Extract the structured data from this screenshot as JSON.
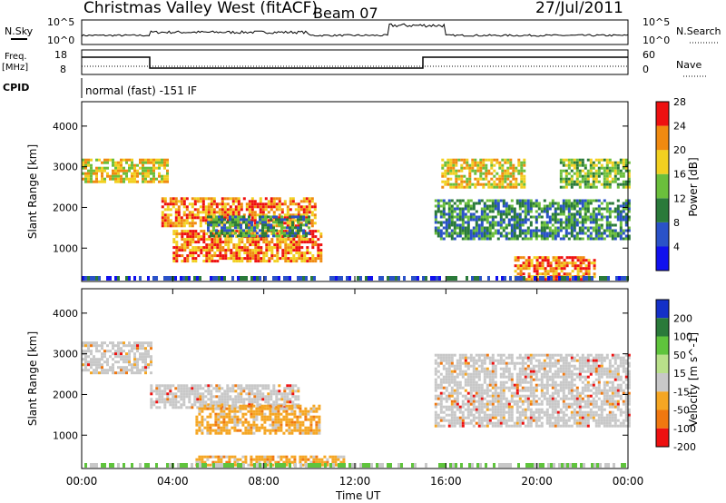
{
  "header": {
    "station": "Christmas Valley West (fitACF)",
    "beam": "Beam 07",
    "date": "27/Jul/2011"
  },
  "strip_nsky": {
    "left_label": "N.Sky",
    "right_label": "N.Search",
    "tick_top": "10^5",
    "tick_bottom": "10^0"
  },
  "strip_freq": {
    "left_label_1": "Freq.",
    "left_label_2": "[MHz]",
    "right_label": "Nave",
    "left_ticks": [
      "18",
      "8"
    ],
    "right_ticks": [
      "60",
      "0"
    ]
  },
  "strip_cpid": {
    "label": "CPID",
    "text": "normal (fast) -151 IF"
  },
  "chart_data": [
    {
      "type": "heatmap",
      "title": "",
      "ylabel": "Slant Range [km]",
      "xlabel": "",
      "yticks": [
        "1000",
        "2000",
        "3000",
        "4000"
      ],
      "ylim": [
        180,
        4600
      ],
      "xlim_hours": [
        0,
        24
      ],
      "colorbar": {
        "label": "Power [dB]",
        "ticks": [
          "4",
          "8",
          "12",
          "16",
          "20",
          "24",
          "28"
        ],
        "colors": [
          "#1010ee",
          "#2a52c8",
          "#2a7a3a",
          "#6bbf3c",
          "#f2d020",
          "#f08a10",
          "#ee1010"
        ]
      },
      "regions": [
        {
          "t0": 0.0,
          "t1": 3.8,
          "r0": 2600,
          "r1": 3200,
          "level": 5
        },
        {
          "t0": 3.5,
          "t1": 10.2,
          "r0": 1550,
          "r1": 2250,
          "level": 6
        },
        {
          "t0": 4.0,
          "t1": 10.5,
          "r0": 650,
          "r1": 1450,
          "level": 6
        },
        {
          "t0": 5.5,
          "t1": 10.0,
          "r0": 1300,
          "r1": 1800,
          "level": 3
        },
        {
          "t0": 15.5,
          "t1": 24.0,
          "r0": 1200,
          "r1": 2200,
          "level": 3
        },
        {
          "t0": 15.8,
          "t1": 19.5,
          "r0": 2500,
          "r1": 3200,
          "level": 5
        },
        {
          "t0": 21.0,
          "t1": 24.0,
          "r0": 2500,
          "r1": 3200,
          "level": 4
        },
        {
          "t0": 19.0,
          "t1": 22.5,
          "r0": 200,
          "r1": 800,
          "level": 6
        }
      ]
    },
    {
      "type": "heatmap",
      "title": "",
      "ylabel": "Slant Range [km]",
      "xlabel": "Time UT",
      "xticks": [
        "00:00",
        "04:00",
        "08:00",
        "12:00",
        "16:00",
        "20:00",
        "00:00"
      ],
      "yticks": [
        "1000",
        "2000",
        "3000",
        "4000"
      ],
      "ylim": [
        180,
        4600
      ],
      "xlim_hours": [
        0,
        24
      ],
      "colorbar": {
        "label": "Velocity [m s^-1]",
        "ticks": [
          "200",
          "100",
          "50",
          "15",
          "-15",
          "-50",
          "-100",
          "-200"
        ],
        "colors": [
          "#1430c8",
          "#2a7a3a",
          "#5fc43c",
          "#b9e08a",
          "#c8c8c8",
          "#f5a623",
          "#f07810",
          "#ee1010"
        ]
      },
      "regions": [
        {
          "t0": 0.0,
          "t1": 3.0,
          "r0": 2500,
          "r1": 3300,
          "vel": "ground"
        },
        {
          "t0": 3.0,
          "t1": 9.5,
          "r0": 1650,
          "r1": 2250,
          "vel": "ground"
        },
        {
          "t0": 5.0,
          "t1": 10.5,
          "r0": 1050,
          "r1": 1750,
          "vel": "-50"
        },
        {
          "t0": 5.0,
          "t1": 11.5,
          "r0": 250,
          "r1": 500,
          "vel": "-50"
        },
        {
          "t0": 15.5,
          "t1": 24.0,
          "r0": 1200,
          "r1": 3000,
          "vel": "ground"
        }
      ]
    }
  ]
}
